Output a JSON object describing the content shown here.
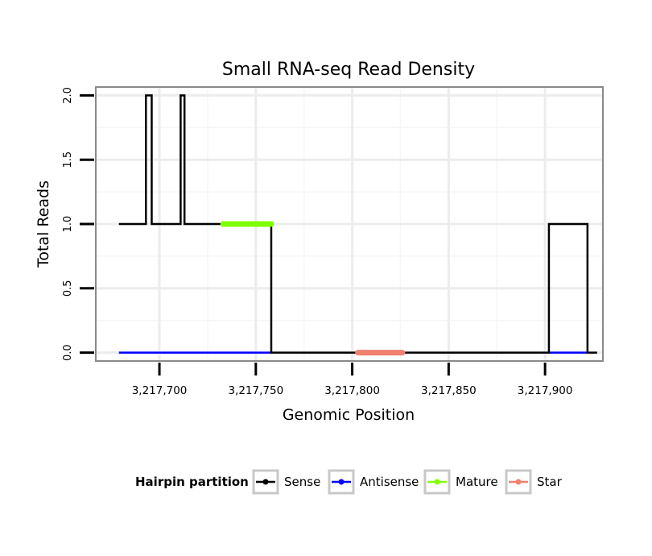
{
  "chart_data": {
    "type": "line",
    "title": "Small RNA-seq Read Density",
    "xlabel": "Genomic Position",
    "ylabel": "Total Reads",
    "xlim": [
      3217667,
      3217930
    ],
    "ylim": [
      -0.065,
      2.065
    ],
    "x_ticks": [
      3217700,
      3217750,
      3217800,
      3217850,
      3217900
    ],
    "x_tick_labels": [
      "3,217,700",
      "3,217,750",
      "3,217,800",
      "3,217,850",
      "3,217,900"
    ],
    "y_ticks": [
      0,
      0.5,
      1,
      1.5,
      2
    ],
    "y_tick_labels": [
      "0.0",
      "0.5",
      "1.0",
      "1.5",
      "2.0"
    ],
    "grid": true,
    "legend_position": "bottom",
    "legend_title": "Hairpin partition",
    "series": [
      {
        "name": "Sense",
        "color": "#000000",
        "x": [
          3217679,
          3217693,
          3217693,
          3217696,
          3217696,
          3217711,
          3217711,
          3217713,
          3217713,
          3217758,
          3217758,
          3217902,
          3217902,
          3217922,
          3217922,
          3217927
        ],
        "y": [
          1,
          1,
          2,
          2,
          1,
          1,
          2,
          2,
          1,
          1,
          0,
          0,
          1,
          1,
          0,
          0
        ]
      },
      {
        "name": "Antisense",
        "color": "#0000ff",
        "x": [
          3217679,
          3217758
        ],
        "y": [
          0,
          0
        ],
        "segments": [
          {
            "x": [
              3217679,
              3217758
            ],
            "y": [
              0,
              0
            ]
          },
          {
            "x": [
              3217902,
              3217922
            ],
            "y": [
              0,
              0
            ]
          }
        ]
      },
      {
        "name": "Mature",
        "color": "#80ff00",
        "x": [
          3217733,
          3217758
        ],
        "y": [
          1,
          1
        ]
      },
      {
        "name": "Star",
        "color": "#f08070",
        "x": [
          3217803,
          3217826
        ],
        "y": [
          0,
          0
        ]
      }
    ]
  }
}
